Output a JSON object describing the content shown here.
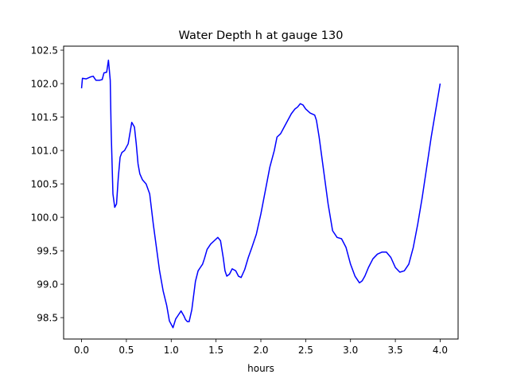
{
  "chart_data": {
    "type": "line",
    "title": "Water Depth h at gauge 130",
    "xlabel": "hours",
    "ylabel": "",
    "xlim": [
      -0.2,
      4.2
    ],
    "ylim": [
      98.18,
      102.56
    ],
    "xticks": [
      0.0,
      0.5,
      1.0,
      1.5,
      2.0,
      2.5,
      3.0,
      3.5,
      4.0
    ],
    "xtick_labels": [
      "0.0",
      "0.5",
      "1.0",
      "1.5",
      "2.0",
      "2.5",
      "3.0",
      "3.5",
      "4.0"
    ],
    "yticks": [
      98.5,
      99.0,
      99.5,
      100.0,
      100.5,
      101.0,
      101.5,
      102.0,
      102.5
    ],
    "ytick_labels": [
      "98.5",
      "99.0",
      "99.5",
      "100.0",
      "100.5",
      "101.0",
      "101.5",
      "102.0",
      "102.5"
    ],
    "grid": false,
    "series": [
      {
        "color": "#0000ff",
        "x": [
          0.0,
          0.01,
          0.05,
          0.1,
          0.13,
          0.16,
          0.2,
          0.23,
          0.25,
          0.28,
          0.3,
          0.32,
          0.33,
          0.35,
          0.37,
          0.39,
          0.41,
          0.43,
          0.45,
          0.48,
          0.52,
          0.56,
          0.59,
          0.61,
          0.63,
          0.65,
          0.68,
          0.72,
          0.76,
          0.8,
          0.83,
          0.87,
          0.91,
          0.95,
          0.98,
          1.02,
          1.05,
          1.08,
          1.11,
          1.14,
          1.16,
          1.18,
          1.2,
          1.23,
          1.27,
          1.3,
          1.33,
          1.35,
          1.37,
          1.4,
          1.44,
          1.48,
          1.52,
          1.55,
          1.58,
          1.6,
          1.62,
          1.65,
          1.68,
          1.72,
          1.75,
          1.78,
          1.82,
          1.86,
          1.9,
          1.95,
          2.0,
          2.05,
          2.1,
          2.15,
          2.18,
          2.22,
          2.26,
          2.3,
          2.34,
          2.38,
          2.41,
          2.44,
          2.47,
          2.5,
          2.55,
          2.6,
          2.62,
          2.65,
          2.7,
          2.75,
          2.8,
          2.85,
          2.9,
          2.95,
          3.0,
          3.05,
          3.1,
          3.13,
          3.16,
          3.2,
          3.25,
          3.3,
          3.35,
          3.4,
          3.45,
          3.5,
          3.55,
          3.6,
          3.65,
          3.7,
          3.75,
          3.8,
          3.85,
          3.9,
          3.95,
          4.0
        ],
        "y": [
          101.93,
          102.08,
          102.07,
          102.1,
          102.11,
          102.05,
          102.05,
          102.06,
          102.16,
          102.17,
          102.35,
          102.05,
          101.3,
          100.35,
          100.15,
          100.2,
          100.6,
          100.9,
          100.97,
          101.0,
          101.1,
          101.42,
          101.35,
          101.1,
          100.8,
          100.65,
          100.56,
          100.5,
          100.35,
          99.9,
          99.6,
          99.2,
          98.9,
          98.68,
          98.45,
          98.35,
          98.48,
          98.54,
          98.6,
          98.53,
          98.47,
          98.44,
          98.44,
          98.62,
          99.04,
          99.2,
          99.26,
          99.3,
          99.38,
          99.52,
          99.6,
          99.65,
          99.7,
          99.65,
          99.4,
          99.2,
          99.12,
          99.15,
          99.23,
          99.2,
          99.12,
          99.1,
          99.22,
          99.4,
          99.55,
          99.75,
          100.05,
          100.4,
          100.75,
          101.0,
          101.2,
          101.25,
          101.35,
          101.45,
          101.55,
          101.62,
          101.65,
          101.7,
          101.68,
          101.62,
          101.56,
          101.53,
          101.45,
          101.2,
          100.7,
          100.2,
          99.8,
          99.7,
          99.68,
          99.55,
          99.3,
          99.12,
          99.02,
          99.05,
          99.12,
          99.25,
          99.38,
          99.45,
          99.48,
          99.48,
          99.4,
          99.25,
          99.18,
          99.2,
          99.3,
          99.55,
          99.9,
          100.3,
          100.75,
          101.2,
          101.6,
          102.0
        ]
      }
    ]
  }
}
